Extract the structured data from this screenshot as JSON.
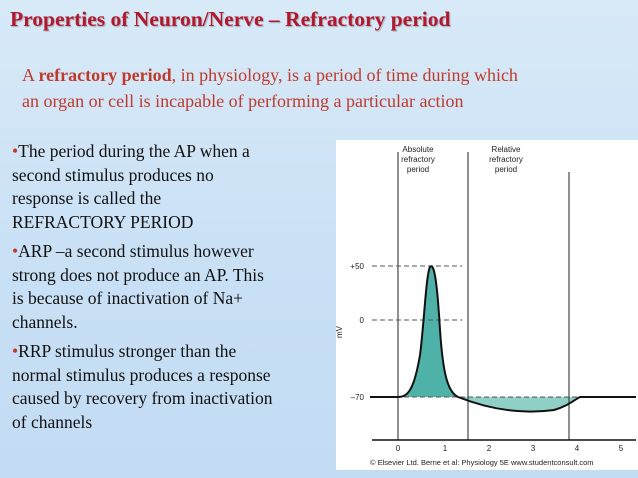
{
  "slide": {
    "title": "Properties of Neuron/Nerve – Refractory period",
    "definition": {
      "prefix": "A ",
      "term": "refractory period",
      "line1_rest": ", in physiology, is a period of time during which",
      "line2": "an organ or cell is incapable of performing a particular action"
    },
    "bullets": [
      {
        "marker": "•",
        "lines": [
          "The period during the AP when a",
          "second stimulus produces no",
          "response is called the",
          "REFRACTORY PERIOD"
        ]
      },
      {
        "marker": "•",
        "lines": [
          "ARP –a second stimulus however",
          "strong does not produce an AP. This",
          "is because of inactivation of Na+",
          "channels."
        ]
      },
      {
        "marker": "•",
        "lines": [
          "RRP stimulus stronger than the",
          "normal stimulus produces a response",
          "caused by recovery from inactivation",
          "of channels"
        ]
      }
    ]
  },
  "figure": {
    "absolute_label": [
      "Absolute",
      "refractory",
      "period"
    ],
    "relative_label": [
      "Relative",
      "refractory",
      "period"
    ],
    "y_axis_label": "mV",
    "y_ticks": [
      "+50",
      "0",
      "–70"
    ],
    "x_ticks": [
      "0",
      "1",
      "2",
      "3",
      "4",
      "5"
    ],
    "copyright": "© Elsevier Ltd. Berne et al: Physiology 5E www.studentconsult.com",
    "colors": {
      "fill": "#4fb2a8",
      "stroke": "#111111"
    }
  }
}
